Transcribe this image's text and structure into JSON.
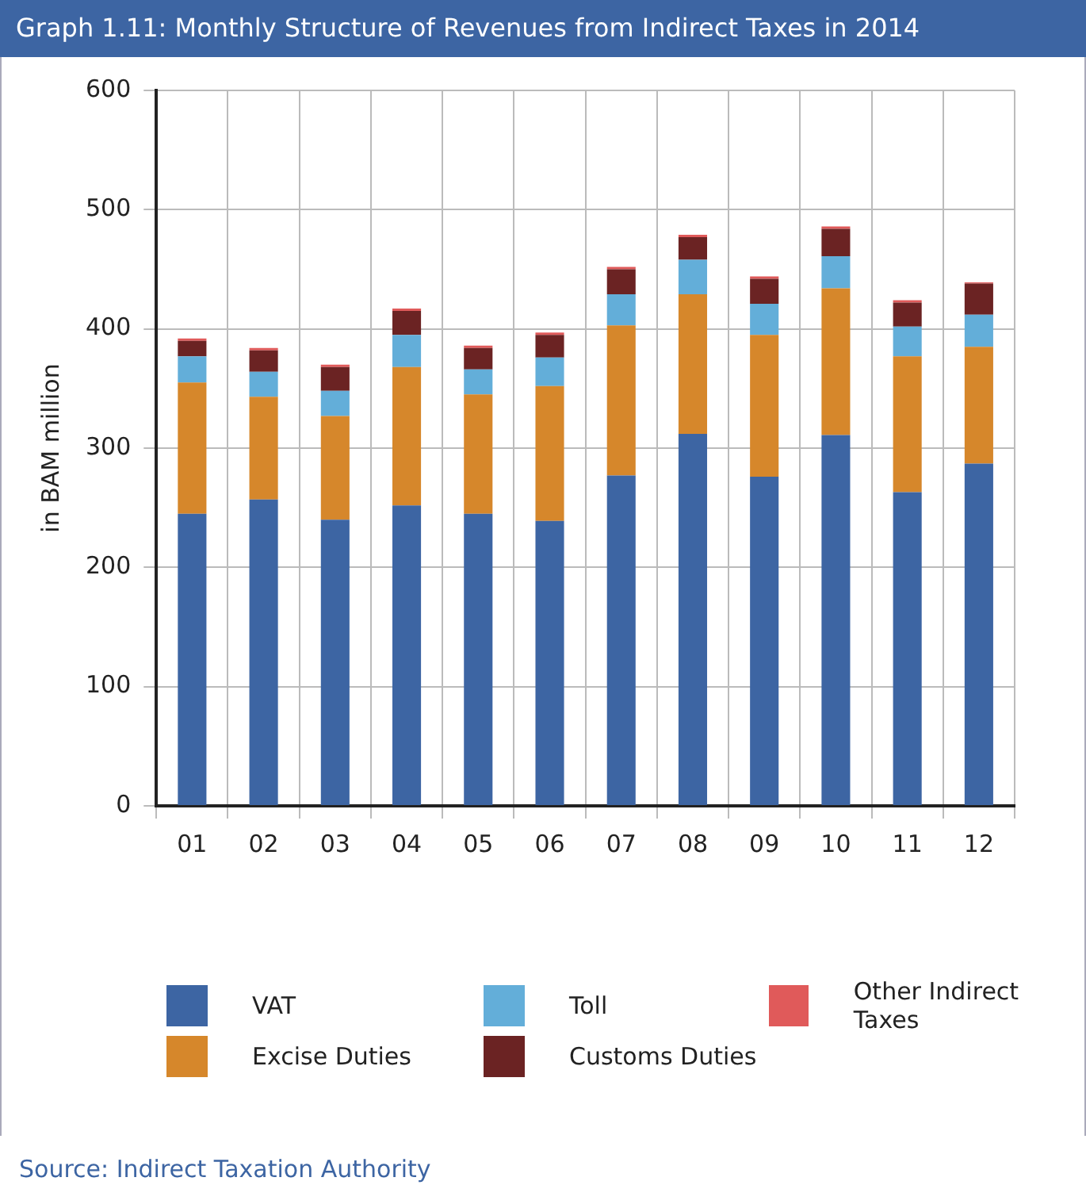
{
  "chart_data": {
    "type": "bar",
    "title": "Graph 1.11: Monthly Structure of Revenues  from Indirect Taxes in  2014",
    "ylabel": "in BAM million",
    "categories": [
      "01",
      "02",
      "03",
      "04",
      "05",
      "06",
      "07",
      "08",
      "09",
      "10",
      "11",
      "12"
    ],
    "stacked": true,
    "ylim": [
      0,
      600
    ],
    "yticks": [
      0,
      100,
      200,
      300,
      400,
      500,
      600
    ],
    "grid": true,
    "legend": "bottom",
    "annotations": [
      "Source: Indirect Taxation Authority"
    ],
    "series": [
      {
        "name": "VAT",
        "color": "#3d65a3",
        "values": [
          245,
          257,
          240,
          252,
          245,
          239,
          277,
          312,
          276,
          311,
          263,
          287
        ]
      },
      {
        "name": "Excise Duties",
        "color": "#d6872b",
        "values": [
          110,
          86,
          87,
          116,
          100,
          113,
          126,
          117,
          119,
          123,
          114,
          98
        ]
      },
      {
        "name": "Toll",
        "color": "#63aed9",
        "values": [
          22,
          21,
          21,
          27,
          21,
          24,
          26,
          29,
          26,
          27,
          25,
          27
        ]
      },
      {
        "name": "Customs Duties",
        "color": "#6b2323",
        "values": [
          13,
          18,
          20,
          20,
          18,
          19,
          21,
          19,
          21,
          23,
          20,
          26
        ]
      },
      {
        "name": "Other Indirect Taxes",
        "color": "#e05a5a",
        "values": [
          2,
          2,
          2,
          2,
          2,
          2,
          2,
          2,
          2,
          2,
          2,
          1
        ]
      }
    ]
  }
}
